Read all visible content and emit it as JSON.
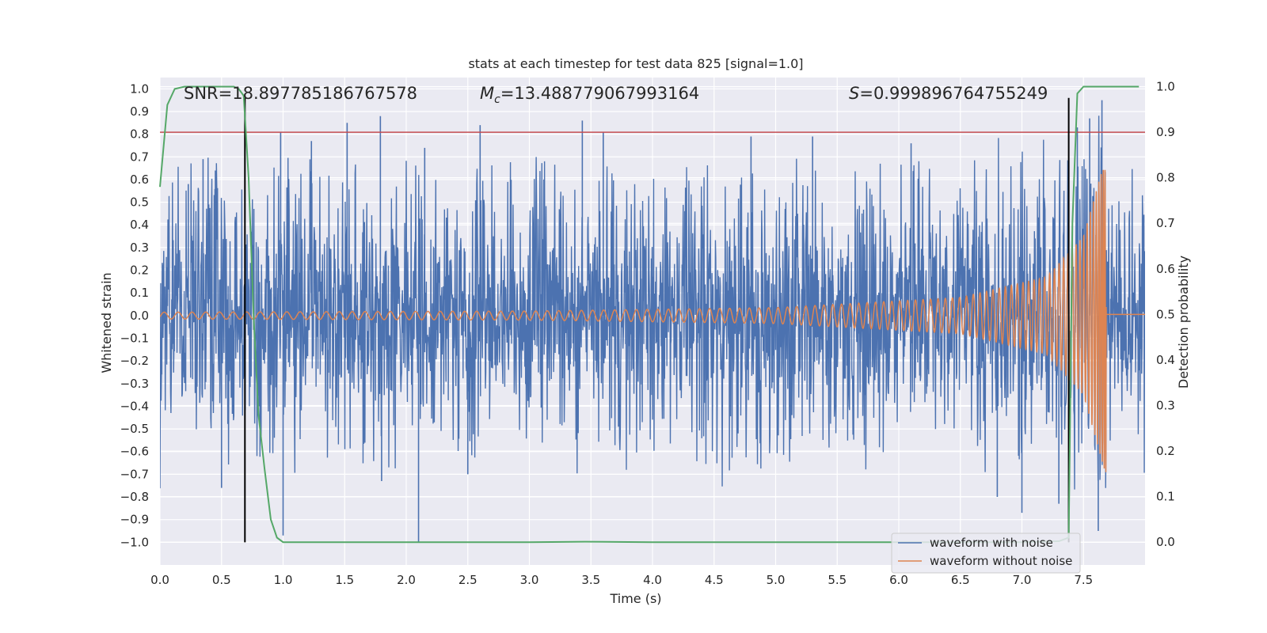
{
  "chart_data": {
    "type": "line",
    "title": "stats at each timestep for test data 825 [signal=1.0]",
    "xlabel": "Time (s)",
    "ylabel": "Whitened strain",
    "ylabel_right": "Detection probability",
    "xlim": [
      0.0,
      8.0
    ],
    "ylim": [
      -1.1,
      1.05
    ],
    "ylim_right": [
      -0.05,
      1.02
    ],
    "x_ticks": [
      "0.0",
      "0.5",
      "1.0",
      "1.5",
      "2.0",
      "2.5",
      "3.0",
      "3.5",
      "4.0",
      "4.5",
      "5.0",
      "5.5",
      "6.0",
      "6.5",
      "7.0",
      "7.5"
    ],
    "y_ticks": [
      "1.0",
      "0.9",
      "0.8",
      "0.7",
      "0.6",
      "0.5",
      "0.4",
      "0.3",
      "0.2",
      "0.1",
      "0.0",
      "−0.1",
      "−0.2",
      "−0.3",
      "−0.4",
      "−0.5",
      "−0.6",
      "−0.7",
      "−0.8",
      "−0.9",
      "−1.0"
    ],
    "y_ticks_right": [
      "1.0",
      "0.9",
      "0.8",
      "0.7",
      "0.6",
      "0.5",
      "0.4",
      "0.3",
      "0.2",
      "0.1",
      "0.0"
    ],
    "annotations": {
      "snr": "SNR=18.897785186767578",
      "mc_symbol": "M",
      "mc_sub": "c",
      "mc_value": "=13.488779067993164",
      "s_symbol": "S",
      "s_value": "=0.999896764755249"
    },
    "legend": {
      "placement": "lower right",
      "entries": [
        "waveform with noise",
        "waveform without noise"
      ]
    },
    "series": [
      {
        "name": "waveform with noise",
        "axis": "left",
        "color": "#4c72b0",
        "style": "dense noisy strain, typical envelope about ±0.55",
        "x_range": [
          0.0,
          8.0
        ],
        "peaks": [
          {
            "x": 0.23,
            "y": 0.58
          },
          {
            "x": 0.35,
            "y": 0.69
          },
          {
            "x": 0.45,
            "y": 0.64
          },
          {
            "x": 0.98,
            "y": 0.81
          },
          {
            "x": 1.23,
            "y": 0.77
          },
          {
            "x": 1.52,
            "y": 0.85
          },
          {
            "x": 1.79,
            "y": 0.88
          },
          {
            "x": 2.15,
            "y": 0.74
          },
          {
            "x": 2.6,
            "y": 0.84
          },
          {
            "x": 3.43,
            "y": 0.86
          },
          {
            "x": 3.6,
            "y": 0.81
          },
          {
            "x": 4.8,
            "y": 0.79
          },
          {
            "x": 5.3,
            "y": 0.79
          },
          {
            "x": 6.1,
            "y": 0.76
          },
          {
            "x": 7.45,
            "y": 0.83
          },
          {
            "x": 7.55,
            "y": 0.87
          },
          {
            "x": 7.65,
            "y": 0.95
          },
          {
            "x": 0.5,
            "y": -0.76
          },
          {
            "x": 1.0,
            "y": -0.97
          },
          {
            "x": 2.1,
            "y": -1.0
          },
          {
            "x": 2.5,
            "y": -0.7
          },
          {
            "x": 1.8,
            "y": -0.73
          },
          {
            "x": 6.8,
            "y": -0.8
          },
          {
            "x": 7.0,
            "y": -0.87
          },
          {
            "x": 7.3,
            "y": -0.83
          },
          {
            "x": 7.62,
            "y": -0.95
          }
        ]
      },
      {
        "name": "waveform without noise",
        "axis": "left",
        "color": "#dd8452",
        "style": "chirp: amplitude and frequency increase, merger near t=7.68 then ringdown to ~0.0",
        "x_range": [
          0.0,
          8.0
        ],
        "amplitude_points": [
          [
            0.0,
            0.015
          ],
          [
            3.0,
            0.02
          ],
          [
            5.0,
            0.035
          ],
          [
            6.5,
            0.08
          ],
          [
            7.2,
            0.17
          ],
          [
            7.5,
            0.35
          ],
          [
            7.64,
            0.62
          ],
          [
            7.68,
            0.7
          ]
        ],
        "min_value": -0.73,
        "max_value": 0.64,
        "post_merger_value": 0.005
      },
      {
        "name": "detection probability",
        "axis": "right",
        "color": "#55a868",
        "x": [
          0.0,
          0.06,
          0.12,
          0.2,
          0.3,
          0.4,
          0.5,
          0.6,
          0.64,
          0.68,
          0.72,
          0.76,
          0.8,
          0.85,
          0.9,
          0.95,
          1.0,
          1.05,
          2.0,
          3.0,
          3.45,
          4.0,
          5.0,
          6.0,
          7.0,
          7.3,
          7.38,
          7.41,
          7.45,
          7.5,
          7.6,
          7.8,
          7.95
        ],
        "values": [
          0.78,
          0.96,
          0.995,
          1.0,
          1.0,
          1.0,
          1.0,
          1.0,
          0.995,
          0.98,
          0.8,
          0.5,
          0.28,
          0.16,
          0.05,
          0.01,
          0.0,
          0.0,
          0.0,
          0.0,
          0.001,
          0.0,
          0.0,
          0.0,
          0.0,
          0.002,
          0.01,
          0.7,
          0.985,
          1.0,
          1.0,
          1.0,
          1.0
        ]
      }
    ],
    "reference_lines": [
      {
        "type": "hline",
        "axis": "right",
        "y": 0.9,
        "color": "#c44e52"
      },
      {
        "type": "vline",
        "axis": "left",
        "x": 0.69,
        "y_range": [
          -1.0,
          0.96
        ],
        "color": "#000000"
      },
      {
        "type": "vline",
        "axis": "left",
        "x": 7.38,
        "y_range": [
          -1.0,
          0.96
        ],
        "color": "#000000"
      }
    ],
    "colors": {
      "background": "#eaeaf2",
      "grid": "#ffffff",
      "noise": "#4c72b0",
      "clean": "#dd8452",
      "probability": "#55a868",
      "threshold": "#c44e52"
    },
    "grid": true
  }
}
